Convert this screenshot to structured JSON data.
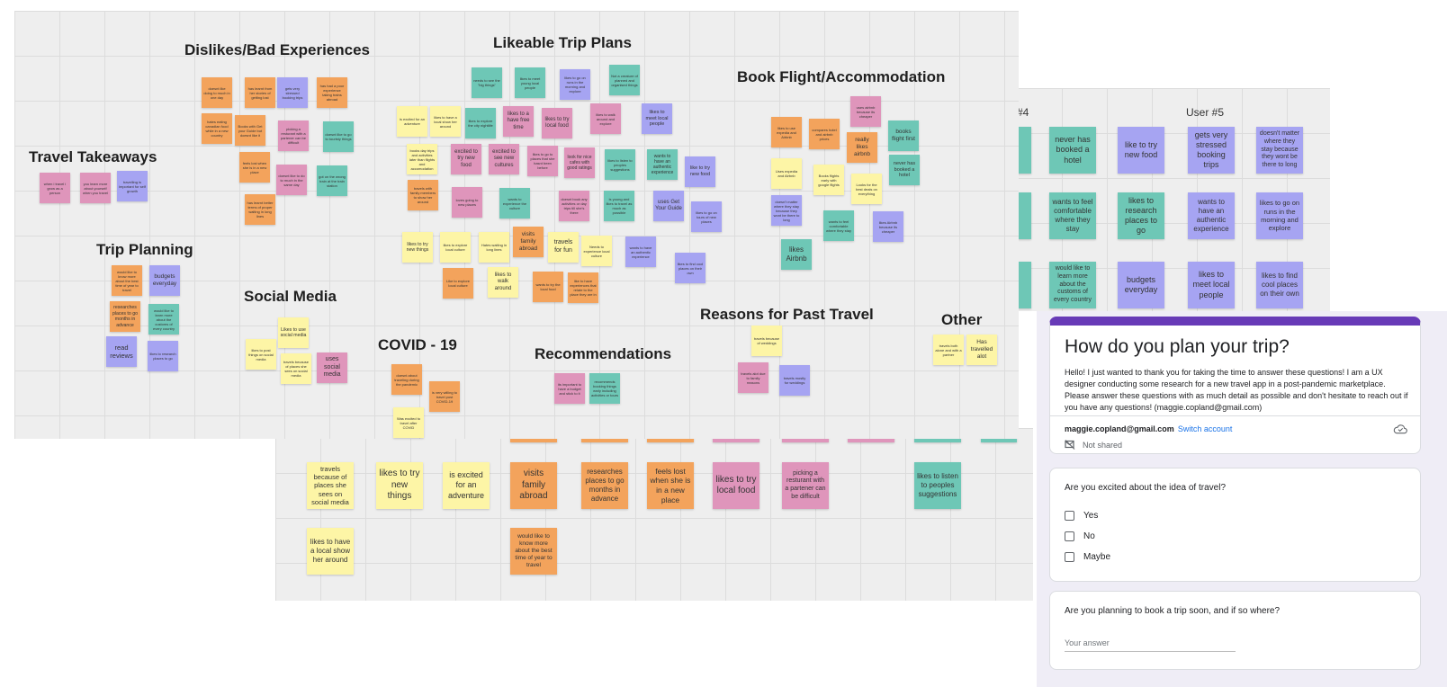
{
  "colors": {
    "yellow": "#fdf5a6",
    "orange": "#f3a35c",
    "pink": "#df95bb",
    "teal": "#6ec7b6",
    "purple": "#a6a4f2",
    "form_accent": "#673ab7",
    "link": "#1a73e8"
  },
  "affinity": {
    "sections": {
      "dislikes": "Dislikes/Bad Experiences",
      "likeable": "Likeable Trip Plans",
      "book": "Book Flight/Accommodation",
      "takeaways": "Travel Takeaways",
      "planning": "Trip Planning",
      "social": "Social Media",
      "covid": "COVID - 19",
      "recs": "Recommendations",
      "reasons": "Reasons for Past Travel",
      "other": "Other"
    },
    "notes": {
      "d1": "doesnt like doing to much in one day",
      "d2": "has learnt from her stories of getting lost",
      "d3": "gets very stressed booking trips",
      "d4": "has had a poor experience taking trains abroad",
      "d5": "hates eating canadian food while in a new country",
      "d6": "Books with Get your Guide but doesnt like it",
      "d7": "picking a resturant with a partener can be difficult",
      "d8": "doesnt like to go to touristy things",
      "d9": "feels lost when she is in a new place",
      "d10": "doesnt like to do to much in the same day",
      "d11": "got on the wrong train at the train station",
      "d12": "has learnt better terms of proper waiting in long lines",
      "tt1": "when i travel i grow as a person",
      "tt2": "you learn more about yourself when you travel",
      "tt3": "travelling is important for self growth",
      "tp1": "would like to know more about the best time of year to travel",
      "tp2": "budgets everyday",
      "tp3": "researches places to go months in advance",
      "tp4": "would like to learn more about the customs of every country",
      "tp5": "read reviews",
      "tp6": "likes to research places to go",
      "l1": "needs to see the \"big things\"",
      "l2": "likes to meet young local people",
      "l3": "likes to go on runs in the morning and explore",
      "l4": "Not a creature of planned and organised things",
      "l5": "is excited for an adventure",
      "l6": "likes to have a local show her around",
      "l7": "likes to explore the city nightlife",
      "l8": "likes to a have free time",
      "l9": "likes to try local food",
      "l10": "likes to walk around and explore",
      "l11": "likes to meet local people",
      "l12": "books day trips and activities later than flights and accomodation",
      "l13": "excited to try new food",
      "l14": "excited to see new cultures",
      "l15": "likes to go to places that she hasnt been before",
      "l16": "look for nice cafes with good ratings",
      "l17": "likes to listen to peoples suggestions",
      "l18": "wants to have an authentic experience",
      "l19": "like to try new food",
      "l20": "travels with family members to show her around",
      "l21": "loves going to new places",
      "l22": "wants to experience the culture",
      "l23": "doesnt book any activities or day trips till she's there",
      "l24": "is young and likes to travel as much as possible",
      "l25": "uses Get Your Guide",
      "l26": "likes to go on tours of new places",
      "l27": "likes to try new things",
      "l28": "likes to explore local culture",
      "l29": "Hates waiting in long lines",
      "l30": "visits family abroad",
      "l31": "travels for fun",
      "l32": "Needs to experience local culture",
      "l33": "wants to have an authentic experience",
      "l34": "likes to find cool places on their own",
      "l35": "Like to explore local culture",
      "l36": "likes to walk around",
      "l37": "wants to try the local food",
      "l38": "like to have experiences that relate to the place they are in",
      "bf1": "uses airbnb because its cheaper",
      "bf2": "likes to use expedia and Airbnb",
      "bf3": "compares hotel and airbnb prices",
      "bf4": "really likes airbnb",
      "bf5": "books flight first",
      "bf6": "Uses expedia and Airbnb",
      "bf7": "Books flights early with google flights",
      "bf8": "Looks for the best deals on everything",
      "bf9": "never has booked a hotel",
      "bf10": "doesn't matter where they stay because they wont be there to long",
      "bf11": "wants to feel comfortable where they stay",
      "bf12": "likes Airbnb because its cheaper",
      "bf13": "likes Airbnb",
      "s1": "likes to post things on social media",
      "s2": "Likes to use social media",
      "s3": "travels because of places she sees on social media",
      "s4": "uses social media",
      "c1": "doesnt about traveling during the pandemic",
      "c2": "is very willing to travel post COVID-19",
      "c3": "Was excited to travel after COVID",
      "r1": "its important to have a budget and stick to it",
      "r2": "recommends booking things early including activities or tours",
      "rp1": "travels because of weddings",
      "rp2": "travels alot due to family reasons",
      "rp3": "travels mostly for weddings",
      "o1": "travels both alone and with a partner",
      "o2": "Has travelled alot"
    }
  },
  "user_board": {
    "header_partial": "#4",
    "header": "User #5",
    "notes": {
      "u1": "never has booked a hotel",
      "u2": "like to try new food",
      "u3": "gets very stressed booking trips",
      "u4": "doesn't matter where they stay because they wont be there to long",
      "u5": "wants to feel comfortable where they stay",
      "u6": "likes to research places to go",
      "u7": "wants to have an authentic experience",
      "u8": "likes to go on runs in the morning and explore",
      "u9": "would like to learn more about the customs of every country",
      "u10": "budgets everyday",
      "u11": "likes to meet local people",
      "u12": "likes to find cool places on their own"
    }
  },
  "board2": {
    "notes": {
      "a1": "travels because of places she sees on social media",
      "a2": "likes to try new things",
      "a3": "is excited for an adventure",
      "a4": "visits family abroad",
      "a5": "researches places to go months in advance",
      "a6": "feels lost when she is in a new place",
      "a7": "likes to try local food",
      "a8": "picking a resturant with a partener can be difficult",
      "a9": "likes to listen to peoples suggestions",
      "a10": "likes to have a local show her around",
      "a11": "would like to know more about the best time of year to travel"
    }
  },
  "form": {
    "title": "How do you plan your trip?",
    "description": "Hello! I just wanted to thank you for taking the time to answer these questions! I am a UX designer conducting some research for a new travel app in a post-pandemic marketplace. Please answer these questions with as much detail as possible and don't hesitate to reach out if you have any questions! (maggie.copland@gmail.com)",
    "email": "maggie.copland@gmail.com",
    "switch": "Switch account",
    "not_shared": "Not shared",
    "q1": {
      "text": "Are you excited about the idea of travel?",
      "options": [
        "Yes",
        "No",
        "Maybe"
      ]
    },
    "q2": {
      "text": "Are you planning to book a trip soon, and if so where?",
      "placeholder": "Your answer"
    }
  }
}
